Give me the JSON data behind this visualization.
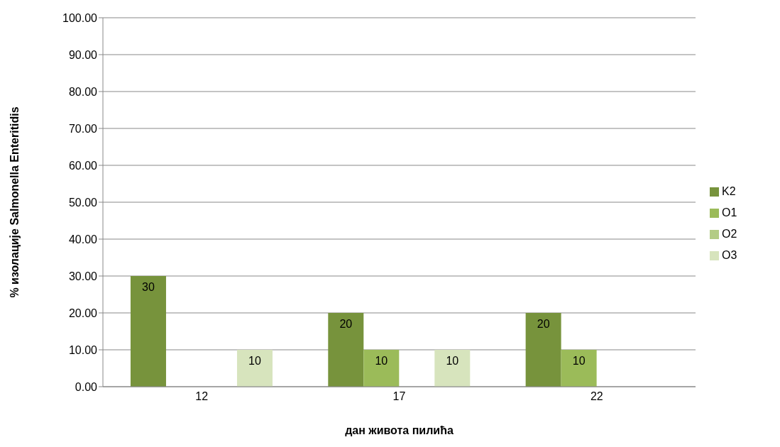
{
  "chart_data": {
    "type": "bar",
    "xlabel": "дан живота пилића",
    "ylabel": "% изолације Salmonella Enteritidis",
    "categories": [
      "12",
      "17",
      "22"
    ],
    "series": [
      {
        "name": "K2",
        "color": "#77933c",
        "values": [
          30,
          20,
          20
        ]
      },
      {
        "name": "O1",
        "color": "#9bbb59",
        "values": [
          null,
          10,
          10
        ]
      },
      {
        "name": "O2",
        "color": "#b3cc85",
        "values": [
          null,
          null,
          null
        ]
      },
      {
        "name": "O3",
        "color": "#d7e4bd",
        "values": [
          10,
          10,
          null
        ]
      }
    ],
    "ylim": [
      0,
      100
    ],
    "yticks": [
      {
        "value": 0,
        "label": "0.00"
      },
      {
        "value": 10,
        "label": "10.00"
      },
      {
        "value": 20,
        "label": "20.00"
      },
      {
        "value": 30,
        "label": "30.00"
      },
      {
        "value": 40,
        "label": "40.00"
      },
      {
        "value": 50,
        "label": "50.00"
      },
      {
        "value": 60,
        "label": "60.00"
      },
      {
        "value": 70,
        "label": "70.00"
      },
      {
        "value": 80,
        "label": "80.00"
      },
      {
        "value": 90,
        "label": "90.00"
      },
      {
        "value": 100,
        "label": "100.00"
      }
    ],
    "grid": "y",
    "legend": "right",
    "data_labels": true
  }
}
